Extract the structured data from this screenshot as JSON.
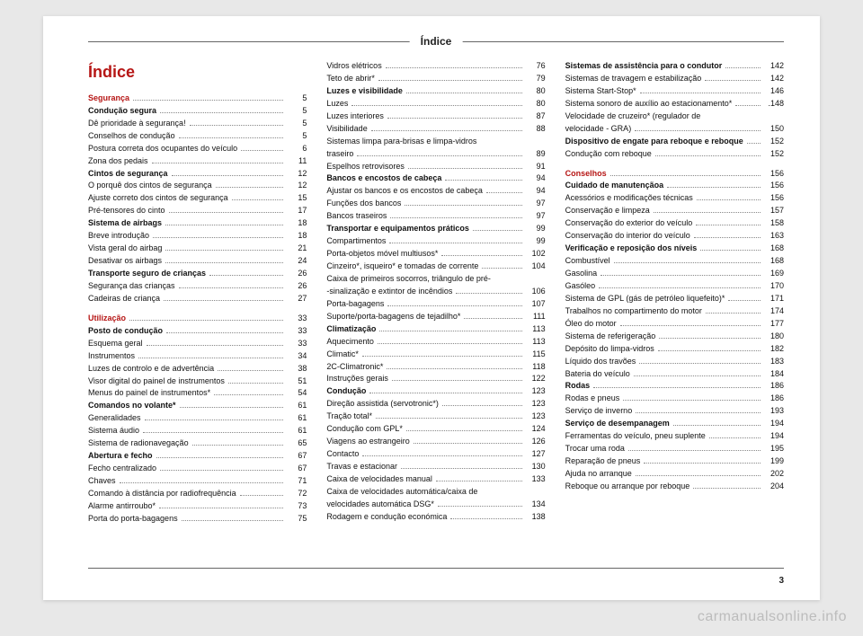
{
  "header": "Índice",
  "main_title": "Índice",
  "footer_page": "3",
  "watermark": "carmanualsonline.info",
  "col1": [
    {
      "label": "Segurança",
      "page": "5",
      "section": true
    },
    {
      "label": "Condução segura",
      "page": "5",
      "bold": true
    },
    {
      "label": "Dê prioridade à segurança!",
      "page": "5"
    },
    {
      "label": "Conselhos de condução",
      "page": "5"
    },
    {
      "label": "Postura correta dos ocupantes do veículo",
      "page": "6"
    },
    {
      "label": "Zona dos pedais",
      "page": "11"
    },
    {
      "label": "Cintos de segurança",
      "page": "12",
      "bold": true
    },
    {
      "label": "O porquê dos cintos de segurança",
      "page": "12"
    },
    {
      "label": "Ajuste correto dos cintos de segurança",
      "page": "15"
    },
    {
      "label": "Pré-tensores do cinto",
      "page": "17"
    },
    {
      "label": "Sistema de airbags",
      "page": "18",
      "bold": true
    },
    {
      "label": "Breve introdução",
      "page": "18"
    },
    {
      "label": "Vista geral do airbag",
      "page": "21"
    },
    {
      "label": "Desativar os airbags",
      "page": "24"
    },
    {
      "label": "Transporte seguro de crianças",
      "page": "26",
      "bold": true
    },
    {
      "label": "Segurança das crianças",
      "page": "26"
    },
    {
      "label": "Cadeiras de criança",
      "page": "27"
    },
    {
      "spacer": true
    },
    {
      "label": "Utilização",
      "page": "33",
      "section": true
    },
    {
      "label": "Posto de condução",
      "page": "33",
      "bold": true
    },
    {
      "label": "Esquema geral",
      "page": "33"
    },
    {
      "label": "Instrumentos",
      "page": "34"
    },
    {
      "label": "Luzes de controlo e de advertência",
      "page": "38"
    },
    {
      "label": "Visor digital do painel de instrumentos",
      "page": "51"
    },
    {
      "label": "Menus do painel de instrumentos*",
      "page": "54"
    },
    {
      "label": "Comandos no volante*",
      "page": "61",
      "bold": true
    },
    {
      "label": "Generalidades",
      "page": "61"
    },
    {
      "label": "Sistema áudio",
      "page": "61"
    },
    {
      "label": "Sistema de radionavegação",
      "page": "65"
    },
    {
      "label": "Abertura e fecho",
      "page": "67",
      "bold": true
    },
    {
      "label": "Fecho centralizado",
      "page": "67"
    },
    {
      "label": "Chaves",
      "page": "71"
    },
    {
      "label": "Comando à distância por radiofrequência",
      "page": "72"
    },
    {
      "label": "Alarme antirroubo*",
      "page": "73"
    },
    {
      "label": "Porta do porta-bagagens",
      "page": "75"
    }
  ],
  "col2": [
    {
      "label": "Vidros elétricos",
      "page": "76"
    },
    {
      "label": "Teto de abrir*",
      "page": "79"
    },
    {
      "label": "Luzes e visibilidade",
      "page": "80",
      "bold": true
    },
    {
      "label": "Luzes",
      "page": "80"
    },
    {
      "label": "Luzes interiores",
      "page": "87"
    },
    {
      "label": "Visibilidade",
      "page": "88"
    },
    {
      "label": "Sistemas limpa para-brisas e limpa-vidros",
      "cont": "traseiro",
      "page": "89"
    },
    {
      "label": "Espelhos retrovisores",
      "page": "91"
    },
    {
      "label": "Bancos e encostos de cabeça",
      "page": "94",
      "bold": true
    },
    {
      "label": "Ajustar os bancos e os encostos de cabeça",
      "page": "94"
    },
    {
      "label": "Funções dos bancos",
      "page": "97"
    },
    {
      "label": "Bancos traseiros",
      "page": "97"
    },
    {
      "label": "Transportar e equipamentos práticos",
      "page": "99",
      "bold": true
    },
    {
      "label": "Compartimentos",
      "page": "99"
    },
    {
      "label": "Porta-objetos móvel multiusos*",
      "page": "102"
    },
    {
      "label": "Cinzeiro*, isqueiro* e tomadas de corrente",
      "page": "104"
    },
    {
      "label": "Caixa de primeiros socorros, triângulo de pré-",
      "cont": "-sinalização e extintor de incêndios",
      "page": "106"
    },
    {
      "label": "Porta-bagagens",
      "page": "107"
    },
    {
      "label": "Suporte/porta-bagagens de tejadilho*",
      "page": "111"
    },
    {
      "label": "Climatização",
      "page": "113",
      "bold": true
    },
    {
      "label": "Aquecimento",
      "page": "113"
    },
    {
      "label": "Climatic*",
      "page": "115"
    },
    {
      "label": "2C-Climatronic*",
      "page": "118"
    },
    {
      "label": "Instruções gerais",
      "page": "122"
    },
    {
      "label": "Condução",
      "page": "123",
      "bold": true
    },
    {
      "label": "Direção assistida (servotronic*)",
      "page": "123"
    },
    {
      "label": "Tração total*",
      "page": "123"
    },
    {
      "label": "Condução com GPL*",
      "page": "124"
    },
    {
      "label": "Viagens ao estrangeiro",
      "page": "126"
    },
    {
      "label": "Contacto",
      "page": "127"
    },
    {
      "label": "Travas e estacionar",
      "page": "130"
    },
    {
      "label": "Caixa de velocidades manual",
      "page": "133"
    },
    {
      "label": "Caixa de velocidades automática/caixa de",
      "cont": "velocidades automática DSG*",
      "page": "134"
    },
    {
      "label": "Rodagem e condução económica",
      "page": "138"
    }
  ],
  "col3": [
    {
      "label": "Sistemas de assistência para o condutor",
      "page": "142",
      "bold": true
    },
    {
      "label": "Sistemas de travagem e estabilização",
      "page": "142"
    },
    {
      "label": "Sistema Start-Stop*",
      "page": "146"
    },
    {
      "label": "Sistema sonoro de auxílio ao estacionamento*",
      "page": ".148"
    },
    {
      "label": "Velocidade de cruzeiro* (regulador de",
      "cont": "velocidade - GRA)",
      "page": "150"
    },
    {
      "label": "Dispositivo de engate para reboque e reboque",
      "page": "152",
      "bold": true
    },
    {
      "label": "Condução com reboque",
      "page": "152"
    },
    {
      "spacer": true
    },
    {
      "label": "Conselhos",
      "page": "156",
      "section": true
    },
    {
      "label": "Cuidado de manutençãoa",
      "page": "156",
      "bold": true
    },
    {
      "label": "Acessórios e modificações técnicas",
      "page": "156"
    },
    {
      "label": "Conservação e limpeza",
      "page": "157"
    },
    {
      "label": "Conservação do exterior do veículo",
      "page": "158"
    },
    {
      "label": "Conservação do interior do veículo",
      "page": "163"
    },
    {
      "label": "Verificação e reposição dos níveis",
      "page": "168",
      "bold": true
    },
    {
      "label": "Combustível",
      "page": "168"
    },
    {
      "label": "Gasolina",
      "page": "169"
    },
    {
      "label": "Gasóleo",
      "page": "170"
    },
    {
      "label": "Sistema de GPL (gás de petróleo liquefeito)*",
      "page": "171"
    },
    {
      "label": "Trabalhos no compartimento do motor",
      "page": "174"
    },
    {
      "label": "Óleo do motor",
      "page": "177"
    },
    {
      "label": "Sistema de referigeração",
      "page": "180"
    },
    {
      "label": "Depósito do limpa-vidros",
      "page": "182"
    },
    {
      "label": "Líquido dos travões",
      "page": "183"
    },
    {
      "label": "Bateria do veículo",
      "page": "184"
    },
    {
      "label": "Rodas",
      "page": "186",
      "bold": true
    },
    {
      "label": "Rodas e pneus",
      "page": "186"
    },
    {
      "label": "Serviço de inverno",
      "page": "193"
    },
    {
      "label": "Serviço de desempanagem",
      "page": "194",
      "bold": true
    },
    {
      "label": "Ferramentas do veículo, pneu suplente",
      "page": "194"
    },
    {
      "label": "Trocar uma roda",
      "page": "195"
    },
    {
      "label": "Reparação de pneus",
      "page": "199"
    },
    {
      "label": "Ajuda no arranque",
      "page": "202"
    },
    {
      "label": "Reboque ou arranque por reboque",
      "page": "204"
    }
  ]
}
